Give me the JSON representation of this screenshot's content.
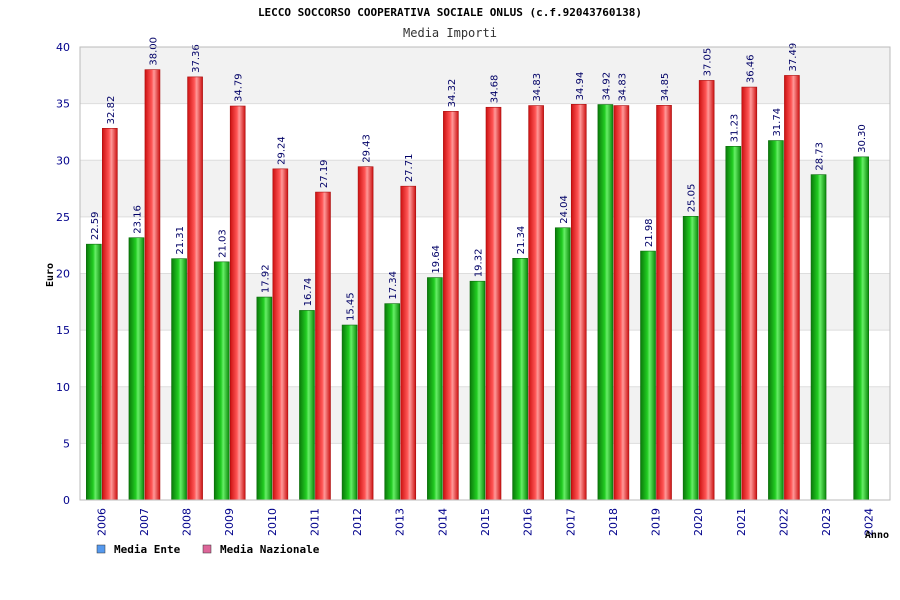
{
  "chart_data": {
    "type": "bar",
    "title": "LECCO SOCCORSO COOPERATIVA SOCIALE ONLUS (c.f.92043760138)",
    "subtitle": "Media Importi",
    "xlabel": "Anno",
    "ylabel": "Euro",
    "ylim": [
      0,
      40
    ],
    "yticks": [
      0,
      5,
      10,
      15,
      20,
      25,
      30,
      35,
      40
    ],
    "grid": true,
    "legend_position": "bottom-left",
    "categories": [
      "2006",
      "2007",
      "2008",
      "2009",
      "2010",
      "2011",
      "2012",
      "2013",
      "2014",
      "2015",
      "2016",
      "2017",
      "2018",
      "2019",
      "2020",
      "2021",
      "2022",
      "2023",
      "2024"
    ],
    "series": [
      {
        "name": "Media Ente",
        "color": "#11aa11",
        "legend_color": "#5599ee",
        "values": [
          22.59,
          23.16,
          21.31,
          21.03,
          17.92,
          16.74,
          15.45,
          17.34,
          19.64,
          19.32,
          21.34,
          24.04,
          34.92,
          21.98,
          25.05,
          31.23,
          31.74,
          28.73,
          30.3
        ],
        "labels": [
          "22.59",
          "23.16",
          "21.31",
          "21.03",
          "17.92",
          "16.74",
          "15.45",
          "17.34",
          "19.64",
          "19.32",
          "21.34",
          "24.04",
          "34.92",
          "21.98",
          "25.05",
          "31.23",
          "31.74",
          "28.73",
          "30.30"
        ]
      },
      {
        "name": "Media Nazionale",
        "color": "#ee2222",
        "legend_color": "#dd6699",
        "values": [
          32.82,
          38.0,
          37.36,
          34.79,
          29.24,
          27.19,
          29.43,
          27.71,
          34.32,
          34.68,
          34.83,
          34.94,
          34.83,
          34.85,
          37.05,
          36.46,
          37.49,
          null,
          null
        ],
        "labels": [
          "32.82",
          "38.00",
          "37.36",
          "34.79",
          "29.24",
          "27.19",
          "29.43",
          "27.71",
          "34.32",
          "34.68",
          "34.83",
          "34.94",
          "34.83",
          "34.85",
          "37.05",
          "36.46",
          "37.49",
          "",
          ""
        ]
      }
    ]
  }
}
